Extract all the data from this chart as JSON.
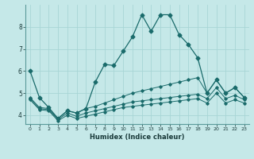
{
  "xlabel": "Humidex (Indice chaleur)",
  "background_color": "#c5e8e8",
  "grid_color": "#a8d5d5",
  "line_color": "#1a6b6b",
  "x_values": [
    0,
    1,
    2,
    3,
    4,
    5,
    6,
    7,
    8,
    9,
    10,
    11,
    12,
    13,
    14,
    15,
    16,
    17,
    18,
    19,
    20,
    21,
    22,
    23
  ],
  "line1": [
    6.0,
    4.8,
    4.35,
    3.85,
    4.2,
    4.1,
    4.3,
    5.5,
    6.3,
    6.25,
    6.9,
    7.55,
    8.55,
    7.8,
    8.55,
    8.55,
    7.65,
    7.2,
    6.6,
    5.0,
    5.6,
    5.0,
    5.25,
    4.8
  ],
  "line2": [
    4.8,
    4.35,
    4.3,
    3.85,
    4.2,
    4.1,
    4.3,
    4.4,
    4.55,
    4.7,
    4.85,
    5.0,
    5.1,
    5.2,
    5.3,
    5.4,
    5.5,
    5.6,
    5.7,
    5.0,
    5.6,
    5.0,
    5.25,
    4.8
  ],
  "line3": [
    4.75,
    4.3,
    4.25,
    3.8,
    4.1,
    3.95,
    4.1,
    4.2,
    4.3,
    4.4,
    4.5,
    4.6,
    4.65,
    4.7,
    4.75,
    4.8,
    4.85,
    4.9,
    4.95,
    4.75,
    5.25,
    4.75,
    4.9,
    4.7
  ],
  "line4": [
    4.7,
    4.25,
    4.2,
    3.75,
    4.0,
    3.85,
    3.95,
    4.05,
    4.15,
    4.25,
    4.35,
    4.4,
    4.45,
    4.5,
    4.55,
    4.6,
    4.65,
    4.7,
    4.75,
    4.55,
    5.0,
    4.55,
    4.7,
    4.55
  ],
  "ylim": [
    3.6,
    9.0
  ],
  "yticks": [
    4,
    5,
    6,
    7,
    8
  ],
  "xlim": [
    -0.5,
    23.5
  ]
}
